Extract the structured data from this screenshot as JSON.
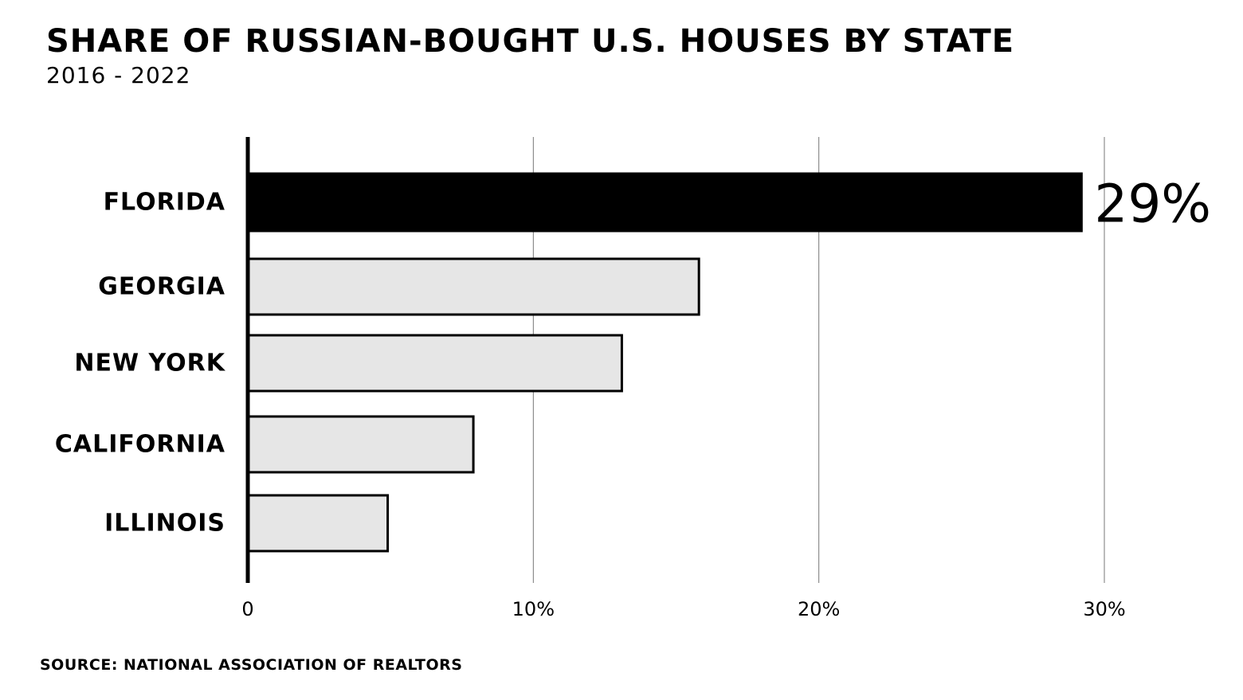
{
  "header": {
    "title": "SHARE OF RUSSIAN-BOUGHT U.S. HOUSES BY STATE",
    "subtitle": "2016 - 2022"
  },
  "footer": {
    "source": "SOURCE: NATIONAL ASSOCIATION OF REALTORS"
  },
  "chart_data": {
    "type": "bar",
    "orientation": "horizontal",
    "title": "SHARE OF RUSSIAN-BOUGHT U.S. HOUSES BY STATE",
    "subtitle": "2016 - 2022",
    "categories": [
      "FLORIDA",
      "GEORGIA",
      "NEW YORK",
      "CALIFORNIA",
      "ILLINOIS"
    ],
    "values": [
      29.2,
      15.8,
      13.1,
      7.9,
      4.9
    ],
    "unit": "%",
    "xlim": [
      0,
      30
    ],
    "xticks": [
      0,
      10,
      20,
      30
    ],
    "xtick_labels": [
      "0",
      "10%",
      "20%",
      "30%"
    ],
    "grid": "vertical",
    "highlight": {
      "category": "FLORIDA",
      "label": "29%"
    },
    "colors": {
      "highlight_fill": "#000000",
      "bar_fill": "#e6e6e6",
      "bar_stroke": "#000000",
      "grid": "#777777",
      "axis": "#000000"
    },
    "source": "SOURCE: NATIONAL ASSOCIATION OF REALTORS"
  }
}
